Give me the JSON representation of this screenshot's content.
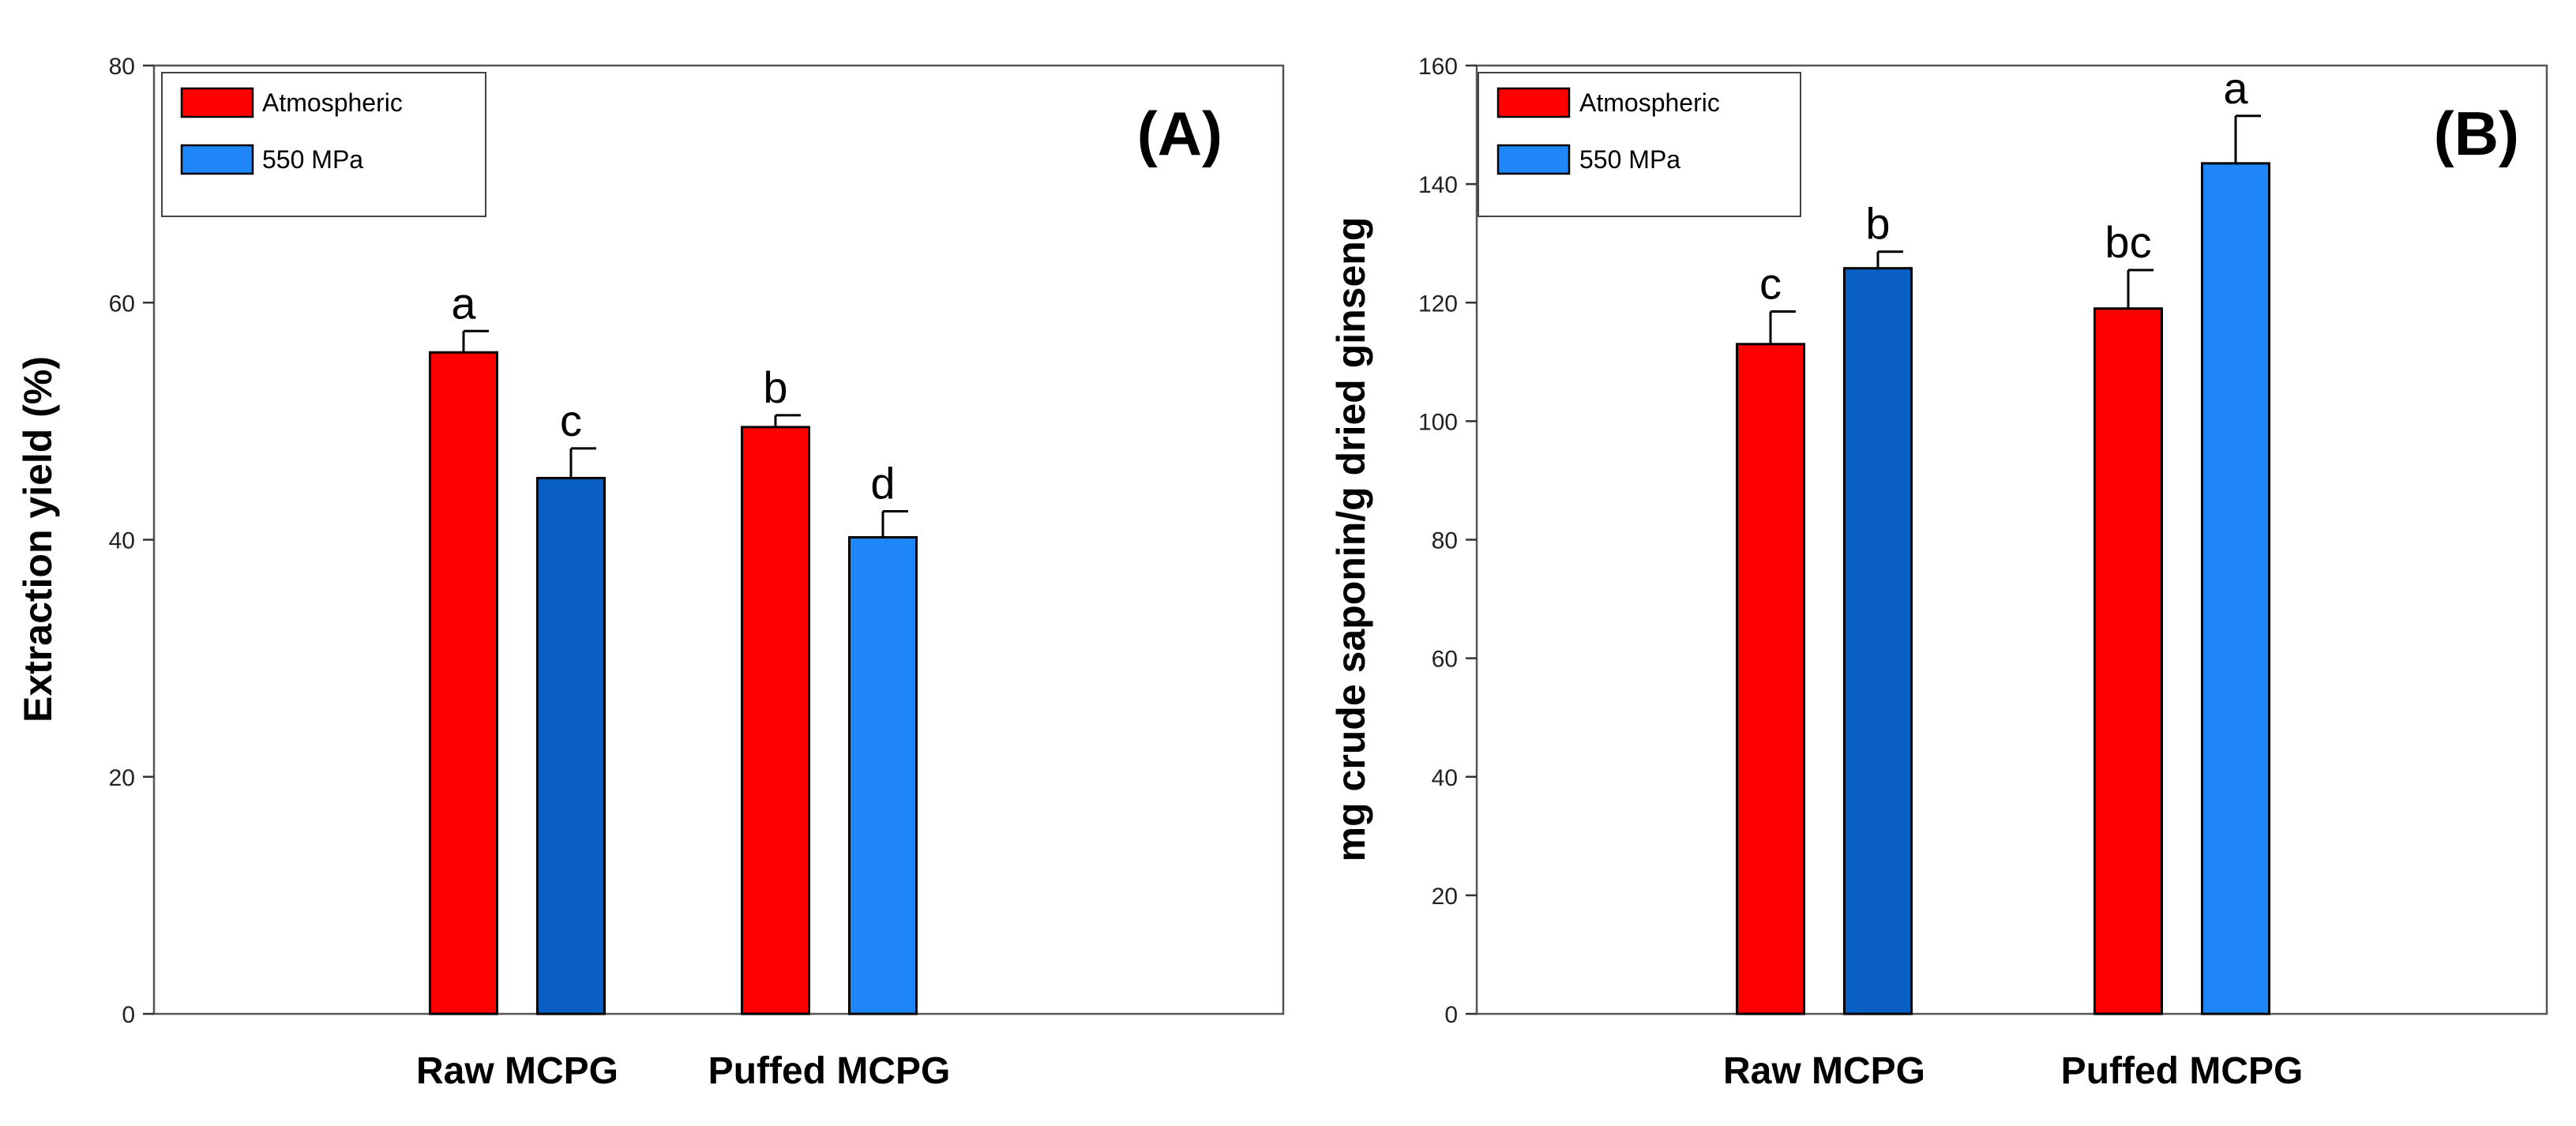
{
  "chart_data": [
    {
      "type": "bar",
      "panel_label": "(A)",
      "ylabel": "Extraction yield (%)",
      "xlabel": "",
      "ylim": [
        0,
        80
      ],
      "yticks": [
        0,
        20,
        40,
        60,
        80
      ],
      "categories": [
        "Raw MCPG",
        "Puffed MCPG"
      ],
      "series": [
        {
          "name": "Atmospheric",
          "values": [
            55.8,
            49.5
          ],
          "errors": [
            1.8,
            1.0
          ],
          "letters": [
            "a",
            "b"
          ],
          "colors": [
            "#ff0000",
            "#ff0000"
          ]
        },
        {
          "name": "550 MPa",
          "values": [
            45.2,
            40.2
          ],
          "errors": [
            2.5,
            2.2
          ],
          "letters": [
            "c",
            "d"
          ],
          "colors": [
            "#0a5fc4",
            "#1e86f7"
          ]
        }
      ],
      "legend": [
        {
          "name": "Atmospheric",
          "color": "#ff0000"
        },
        {
          "name": "550 MPa",
          "color": "#1e86f7"
        }
      ]
    },
    {
      "type": "bar",
      "panel_label": "(B)",
      "ylabel": "mg crude saponin/g dried ginseng",
      "xlabel": "",
      "ylim": [
        0,
        160
      ],
      "yticks": [
        0,
        20,
        40,
        60,
        80,
        100,
        120,
        140,
        160
      ],
      "categories": [
        "Raw MCPG",
        "Puffed MCPG"
      ],
      "series": [
        {
          "name": "Atmospheric",
          "values": [
            113,
            119
          ],
          "errors": [
            5.5,
            6.5
          ],
          "letters": [
            "c",
            "bc"
          ],
          "colors": [
            "#ff0000",
            "#ff0000"
          ]
        },
        {
          "name": "550 MPa",
          "values": [
            125.8,
            143.5
          ],
          "errors": [
            2.8,
            8.0
          ],
          "letters": [
            "b",
            "a"
          ],
          "colors": [
            "#0a5fc4",
            "#1e86f7"
          ]
        }
      ],
      "legend": [
        {
          "name": "Atmospheric",
          "color": "#ff0000"
        },
        {
          "name": "550 MPa",
          "color": "#1e86f7"
        }
      ]
    }
  ]
}
